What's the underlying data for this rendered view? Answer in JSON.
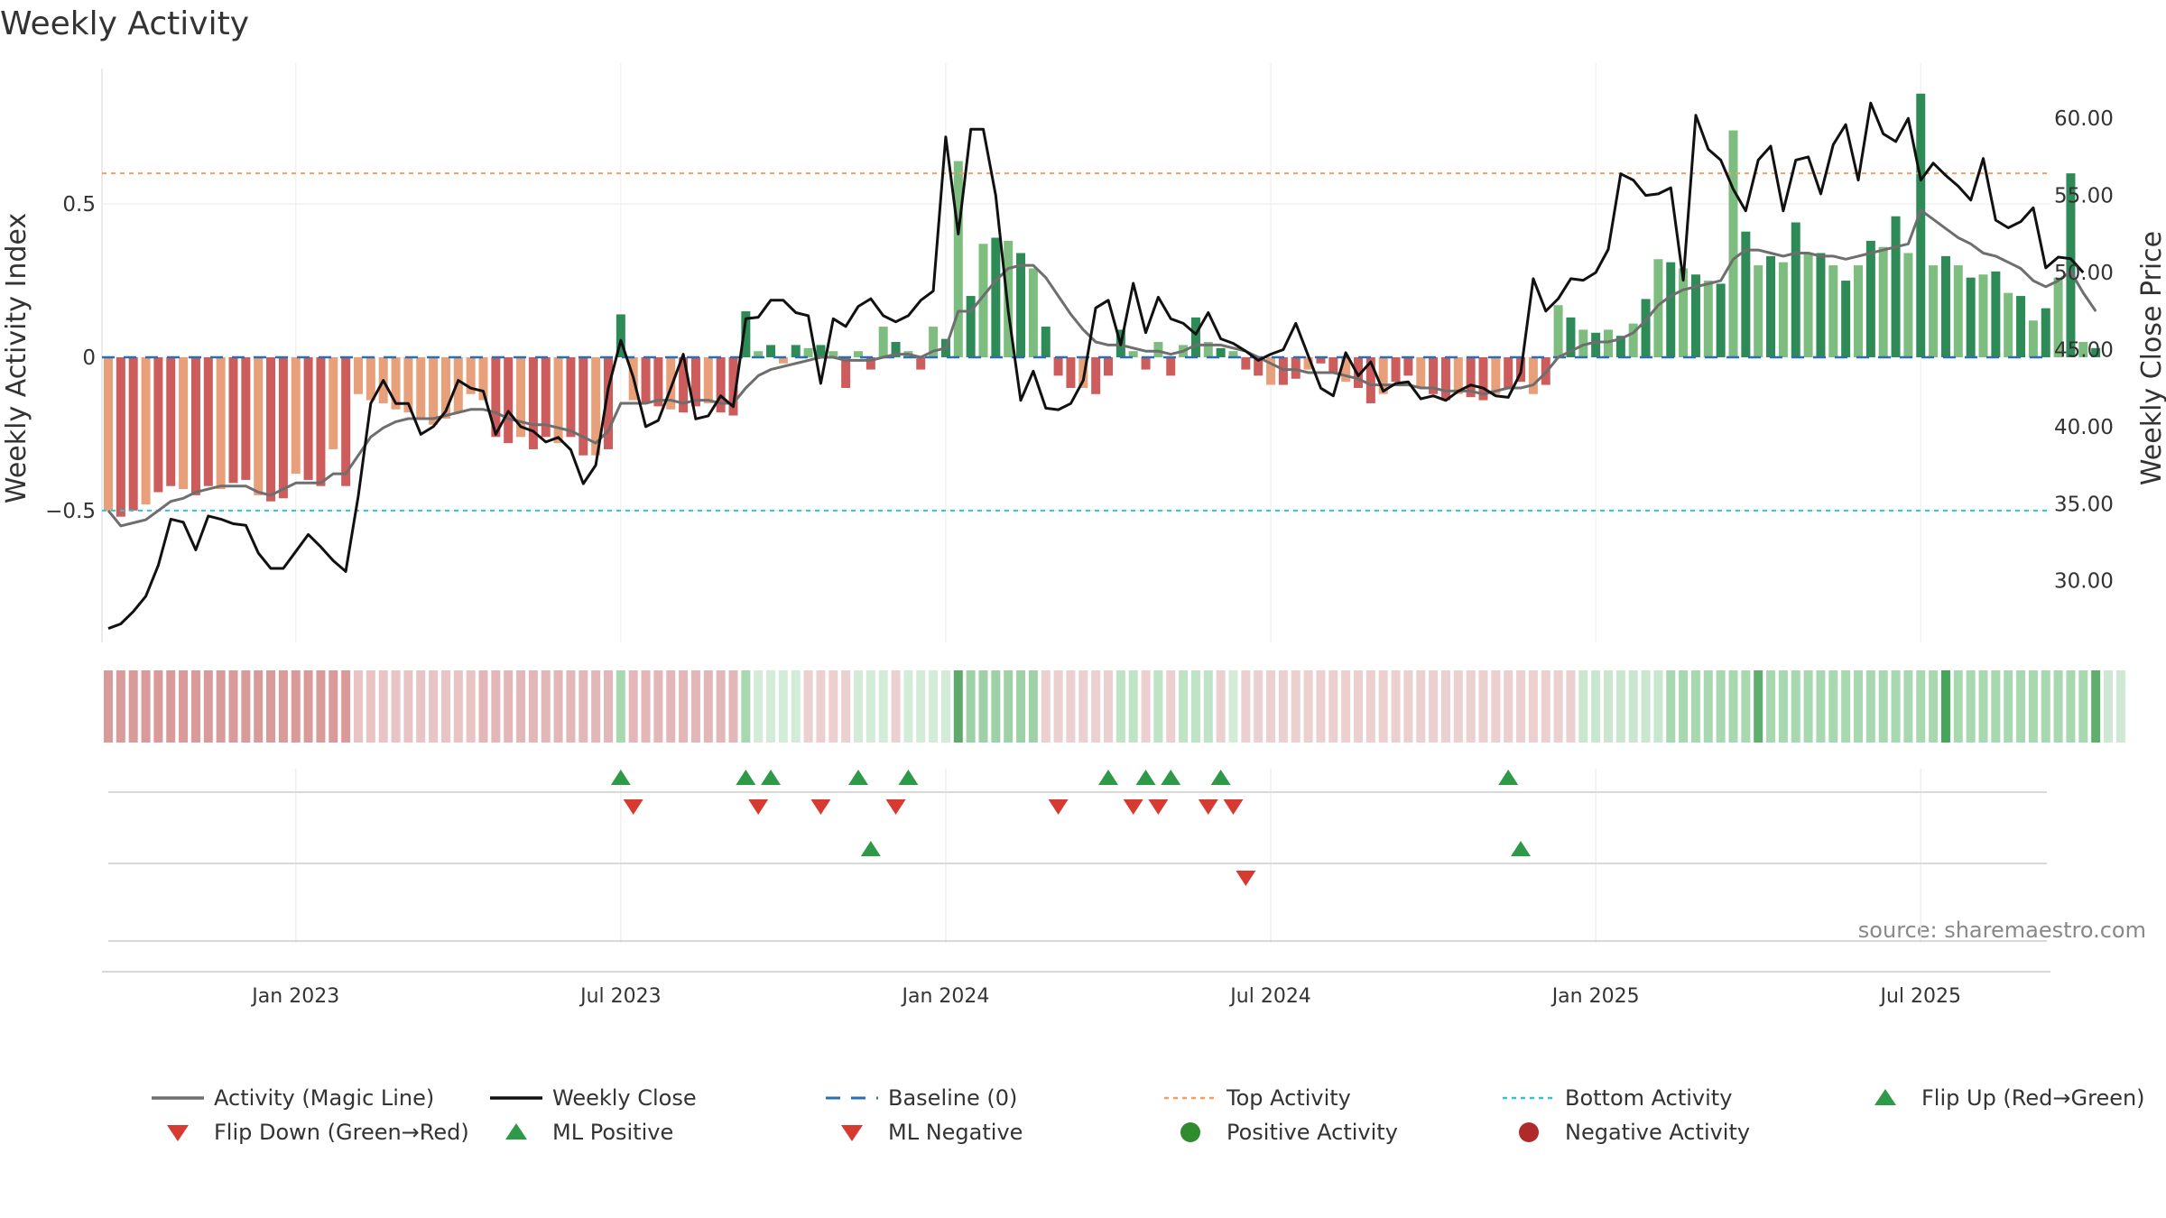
{
  "chart_data": {
    "type": "bar",
    "title": "Weekly Activity",
    "ylabel": "Weekly Activity Index",
    "y2label": "Weekly Close Price",
    "ylim": [
      -0.93,
      0.93
    ],
    "y2lim": [
      26.0,
      63.0
    ],
    "yticks": [
      {
        "value": 0.5,
        "label": "0.5"
      },
      {
        "value": 0,
        "label": "0"
      },
      {
        "value": -0.5,
        "label": "−0.5"
      }
    ],
    "y2ticks": [
      {
        "value": 60,
        "label": "60.00"
      },
      {
        "value": 55,
        "label": "55.00"
      },
      {
        "value": 50,
        "label": "50.00"
      },
      {
        "value": 45,
        "label": "45.00"
      },
      {
        "value": 40,
        "label": "40.00"
      },
      {
        "value": 35,
        "label": "35.00"
      },
      {
        "value": 30,
        "label": "30.00"
      }
    ],
    "x_ticks": [
      {
        "index": 15,
        "label": "Jan 2023"
      },
      {
        "index": 41,
        "label": "Jul 2023"
      },
      {
        "index": 67,
        "label": "Jan 2024"
      },
      {
        "index": 93,
        "label": "Jul 2024"
      },
      {
        "index": 119,
        "label": "Jan 2025"
      },
      {
        "index": 145,
        "label": "Jul 2025"
      }
    ],
    "top_activity": 0.6,
    "bottom_activity": -0.5,
    "activity": [
      -0.5,
      -0.52,
      -0.5,
      -0.48,
      -0.44,
      -0.42,
      -0.43,
      -0.45,
      -0.42,
      -0.43,
      -0.41,
      -0.4,
      -0.45,
      -0.47,
      -0.46,
      -0.38,
      -0.4,
      -0.42,
      -0.3,
      -0.42,
      -0.12,
      -0.14,
      -0.15,
      -0.17,
      -0.18,
      -0.2,
      -0.22,
      -0.2,
      -0.18,
      -0.12,
      -0.14,
      -0.26,
      -0.28,
      -0.26,
      -0.3,
      -0.26,
      -0.28,
      -0.26,
      -0.32,
      -0.32,
      -0.3,
      0.14,
      -0.14,
      -0.15,
      -0.16,
      -0.17,
      -0.18,
      -0.16,
      -0.15,
      -0.18,
      -0.19,
      0.15,
      0.02,
      0.04,
      -0.02,
      0.04,
      0.03,
      0.04,
      0.02,
      -0.1,
      0.02,
      -0.04,
      0.1,
      0.05,
      0.02,
      -0.04,
      0.1,
      0.06,
      0.64,
      0.2,
      0.37,
      0.39,
      0.38,
      0.34,
      0.29,
      0.1,
      -0.06,
      -0.1,
      -0.1,
      -0.12,
      -0.06,
      0.09,
      0.02,
      -0.04,
      0.05,
      -0.06,
      0.04,
      0.13,
      0.05,
      0.03,
      0.02,
      -0.04,
      -0.06,
      -0.09,
      -0.09,
      -0.07,
      -0.04,
      -0.02,
      -0.05,
      -0.08,
      -0.1,
      -0.15,
      -0.12,
      -0.08,
      -0.06,
      -0.1,
      -0.12,
      -0.14,
      -0.12,
      -0.13,
      -0.14,
      -0.12,
      -0.1,
      -0.08,
      -0.12,
      -0.09,
      0.17,
      0.13,
      0.09,
      0.08,
      0.09,
      0.07,
      0.11,
      0.19,
      0.32,
      0.31,
      0.29,
      0.27,
      0.25,
      0.24,
      0.74,
      0.41,
      0.3,
      0.33,
      0.31,
      0.44,
      0.34,
      0.34,
      0.3,
      0.25,
      0.3,
      0.38,
      0.36,
      0.46,
      0.34,
      0.86,
      0.3,
      0.33,
      0.3,
      0.26,
      0.27,
      0.28,
      0.21,
      0.2,
      0.12,
      0.16,
      0.26,
      0.6,
      0.05,
      0.03
    ],
    "weekly_close": [
      26.9,
      27.2,
      28.0,
      29.0,
      31.0,
      34.0,
      33.8,
      32.0,
      34.2,
      34.0,
      33.7,
      33.6,
      31.8,
      30.8,
      30.8,
      31.9,
      33.0,
      32.2,
      31.3,
      30.6,
      35.5,
      41.5,
      43.0,
      41.5,
      41.5,
      39.5,
      40.0,
      41.0,
      43.0,
      42.5,
      42.3,
      39.5,
      41.0,
      40.0,
      39.7,
      39.0,
      39.3,
      38.5,
      36.3,
      37.5,
      42.5,
      45.6,
      43.2,
      40.0,
      40.4,
      42.5,
      44.7,
      40.5,
      40.7,
      42.0,
      41.3,
      47.0,
      47.1,
      48.2,
      48.2,
      47.4,
      47.2,
      42.8,
      47.0,
      46.5,
      47.8,
      48.3,
      47.2,
      46.8,
      47.2,
      48.2,
      48.8,
      58.8,
      52.5,
      59.3,
      59.3,
      55.0,
      47.5,
      41.7,
      43.6,
      41.2,
      41.1,
      41.5,
      43.0,
      47.7,
      48.2,
      45.3,
      49.3,
      46.1,
      48.4,
      47.0,
      46.7,
      46.0,
      47.4,
      45.7,
      45.4,
      44.9,
      44.3,
      44.7,
      45.0,
      46.7,
      44.6,
      42.5,
      42.0,
      44.8,
      43.3,
      44.2,
      42.3,
      42.8,
      42.9,
      41.8,
      42.0,
      41.7,
      42.3,
      42.7,
      42.5,
      42.0,
      41.9,
      43.5,
      49.6,
      47.5,
      48.3,
      49.6,
      49.5,
      50.0,
      51.5,
      56.4,
      56.0,
      55.0,
      55.1,
      55.5,
      49.5,
      60.2,
      58.0,
      57.3,
      55.4,
      54.0,
      57.3,
      58.2,
      54.0,
      57.3,
      57.5,
      55.1,
      58.3,
      59.6,
      56.0,
      61.0,
      59.0,
      58.5,
      60.0,
      56.0,
      57.1,
      56.3,
      55.6,
      54.7,
      57.4,
      53.4,
      52.9,
      53.3,
      54.2,
      50.3,
      51.0,
      50.9,
      50.0
    ],
    "magic_line": [
      -0.5,
      -0.55,
      -0.54,
      -0.53,
      -0.5,
      -0.47,
      -0.46,
      -0.44,
      -0.43,
      -0.42,
      -0.42,
      -0.42,
      -0.44,
      -0.45,
      -0.43,
      -0.41,
      -0.41,
      -0.41,
      -0.38,
      -0.38,
      -0.32,
      -0.26,
      -0.23,
      -0.21,
      -0.2,
      -0.2,
      -0.2,
      -0.19,
      -0.18,
      -0.17,
      -0.17,
      -0.18,
      -0.2,
      -0.21,
      -0.22,
      -0.22,
      -0.23,
      -0.24,
      -0.26,
      -0.28,
      -0.24,
      -0.15,
      -0.15,
      -0.15,
      -0.14,
      -0.14,
      -0.15,
      -0.14,
      -0.14,
      -0.15,
      -0.15,
      -0.1,
      -0.06,
      -0.04,
      -0.03,
      -0.02,
      -0.01,
      0.0,
      0.0,
      -0.01,
      -0.01,
      -0.01,
      0.0,
      0.01,
      0.01,
      0.0,
      0.02,
      0.03,
      0.15,
      0.15,
      0.2,
      0.25,
      0.29,
      0.3,
      0.3,
      0.26,
      0.2,
      0.14,
      0.09,
      0.05,
      0.04,
      0.04,
      0.03,
      0.02,
      0.02,
      0.01,
      0.02,
      0.04,
      0.04,
      0.04,
      0.03,
      0.02,
      0.0,
      -0.02,
      -0.04,
      -0.04,
      -0.05,
      -0.05,
      -0.05,
      -0.06,
      -0.07,
      -0.09,
      -0.09,
      -0.09,
      -0.09,
      -0.1,
      -0.1,
      -0.11,
      -0.11,
      -0.11,
      -0.12,
      -0.11,
      -0.1,
      -0.1,
      -0.09,
      -0.05,
      0.0,
      0.02,
      0.04,
      0.05,
      0.05,
      0.06,
      0.08,
      0.12,
      0.17,
      0.2,
      0.22,
      0.23,
      0.24,
      0.25,
      0.32,
      0.35,
      0.35,
      0.34,
      0.33,
      0.34,
      0.34,
      0.33,
      0.33,
      0.32,
      0.33,
      0.34,
      0.35,
      0.36,
      0.37,
      0.48,
      0.45,
      0.42,
      0.39,
      0.37,
      0.34,
      0.33,
      0.31,
      0.29,
      0.25,
      0.23,
      0.25,
      0.28,
      0.21,
      0.15
    ],
    "ribbon_colors": [
      "#d99a9a",
      "#d99a9a",
      "#d99a9a",
      "#d99a9a",
      "#d99a9a",
      "#d99a9a",
      "#d99a9a",
      "#d99a9a",
      "#d99a9a",
      "#d99a9a",
      "#d99a9a",
      "#d99a9a",
      "#d99a9a",
      "#d99a9a",
      "#d99a9a",
      "#d99a9a",
      "#d99a9a",
      "#d99a9a",
      "#d99a9a",
      "#d99a9a",
      "#e8c4c4",
      "#e8c4c4",
      "#e8c4c4",
      "#e8c4c4",
      "#e8c4c4",
      "#e8c4c4",
      "#e8c4c4",
      "#e8c4c4",
      "#e8c4c4",
      "#e8c4c4",
      "#e3b7b7",
      "#e3b7b7",
      "#e3b7b7",
      "#e3b7b7",
      "#e3b7b7",
      "#e3b7b7",
      "#e3b7b7",
      "#e3b7b7",
      "#e3b7b7",
      "#e3b7b7",
      "#e3b7b7",
      "#a8d8b0",
      "#e3b7b7",
      "#e3b7b7",
      "#e3b7b7",
      "#e3b7b7",
      "#e3b7b7",
      "#e3b7b7",
      "#e3b7b7",
      "#e3b7b7",
      "#e3b7b7",
      "#a8d8b0",
      "#d3ecd8",
      "#d3ecd8",
      "#d3ecd8",
      "#d3ecd8",
      "#ecd0d0",
      "#ecd0d0",
      "#ecd0d0",
      "#ecd0d0",
      "#d3ecd8",
      "#d3ecd8",
      "#d3ecd8",
      "#ecd0d0",
      "#d3ecd8",
      "#d3ecd8",
      "#d3ecd8",
      "#d3ecd8",
      "#5fa86e",
      "#9fd1a8",
      "#9fd1a8",
      "#9fd1a8",
      "#9fd1a8",
      "#9fd1a8",
      "#9fd1a8",
      "#ecd0d0",
      "#ecd0d0",
      "#ecd0d0",
      "#ecd0d0",
      "#ecd0d0",
      "#ecd0d0",
      "#bfe3c5",
      "#bfe3c5",
      "#ecd0d0",
      "#bfe3c5",
      "#ecd0d0",
      "#bfe3c5",
      "#bfe3c5",
      "#bfe3c5",
      "#ecd0d0",
      "#d3ecd8",
      "#ecd0d0",
      "#ecd0d0",
      "#ecd0d0",
      "#ecd0d0",
      "#ecd0d0",
      "#ecd0d0",
      "#ecd0d0",
      "#ecd0d0",
      "#ecd0d0",
      "#ecd0d0",
      "#ecd0d0",
      "#ecd0d0",
      "#ecd0d0",
      "#ecd0d0",
      "#ecd0d0",
      "#ecd0d0",
      "#ecd0d0",
      "#ecd0d0",
      "#ecd0d0",
      "#ecd0d0",
      "#ecd0d0",
      "#ecd0d0",
      "#ecd0d0",
      "#ecd0d0",
      "#ecd0d0",
      "#ecd0d0",
      "#ecd0d0",
      "#c9e7ce",
      "#c9e7ce",
      "#c9e7ce",
      "#c9e7ce",
      "#c9e7ce",
      "#c9e7ce",
      "#c9e7ce",
      "#a8d8b0",
      "#a8d8b0",
      "#a8d8b0",
      "#a8d8b0",
      "#a8d8b0",
      "#a8d8b0",
      "#a8d8b0",
      "#5fae6e",
      "#a8d8b0",
      "#a8d8b0",
      "#a8d8b0",
      "#a8d8b0",
      "#a8d8b0",
      "#a8d8b0",
      "#a8d8b0",
      "#a8d8b0",
      "#a8d8b0",
      "#a8d8b0",
      "#a8d8b0",
      "#a8d8b0",
      "#a8d8b0",
      "#a8d8b0",
      "#45a55a",
      "#a8d8b0",
      "#a8d8b0",
      "#a8d8b0",
      "#a8d8b0",
      "#a8d8b0",
      "#a8d8b0",
      "#a8d8b0",
      "#a8d8b0",
      "#a8d8b0",
      "#a8d8b0",
      "#a8d8b0",
      "#5fae6e",
      "#cfe8d3",
      "#cfe8d3"
    ],
    "flip_up": [
      41,
      51,
      53,
      60,
      64,
      80,
      83,
      85,
      89,
      112
    ],
    "flip_down": [
      42,
      52,
      57,
      63,
      76,
      82,
      84,
      88,
      90
    ],
    "ml_positive": [
      61,
      113
    ],
    "ml_negative": [
      91
    ],
    "source": "source: sharemaestro.com",
    "legend": [
      {
        "label": "Activity (Magic Line)",
        "kind": "line",
        "color": "#6e6e6e"
      },
      {
        "label": "Weekly Close",
        "kind": "line",
        "color": "#111111"
      },
      {
        "label": "Baseline (0)",
        "kind": "dash",
        "color": "#2a6fb0"
      },
      {
        "label": "Top Activity",
        "kind": "dot",
        "color": "#f0a060"
      },
      {
        "label": "Bottom Activity",
        "kind": "dot",
        "color": "#2fc2d8"
      },
      {
        "label": "Flip Up (Red→Green)",
        "kind": "tri-up",
        "color": "#2e9a48"
      },
      {
        "label": "Flip Down (Green→Red)",
        "kind": "tri-down",
        "color": "#d63a30"
      },
      {
        "label": "ML Positive",
        "kind": "tri-up",
        "color": "#2e9a48"
      },
      {
        "label": "ML Negative",
        "kind": "tri-down",
        "color": "#d63a30"
      },
      {
        "label": "Positive Activity",
        "kind": "circle",
        "color": "#2e8b2e"
      },
      {
        "label": "Negative Activity",
        "kind": "circle",
        "color": "#b02a2a"
      }
    ]
  }
}
